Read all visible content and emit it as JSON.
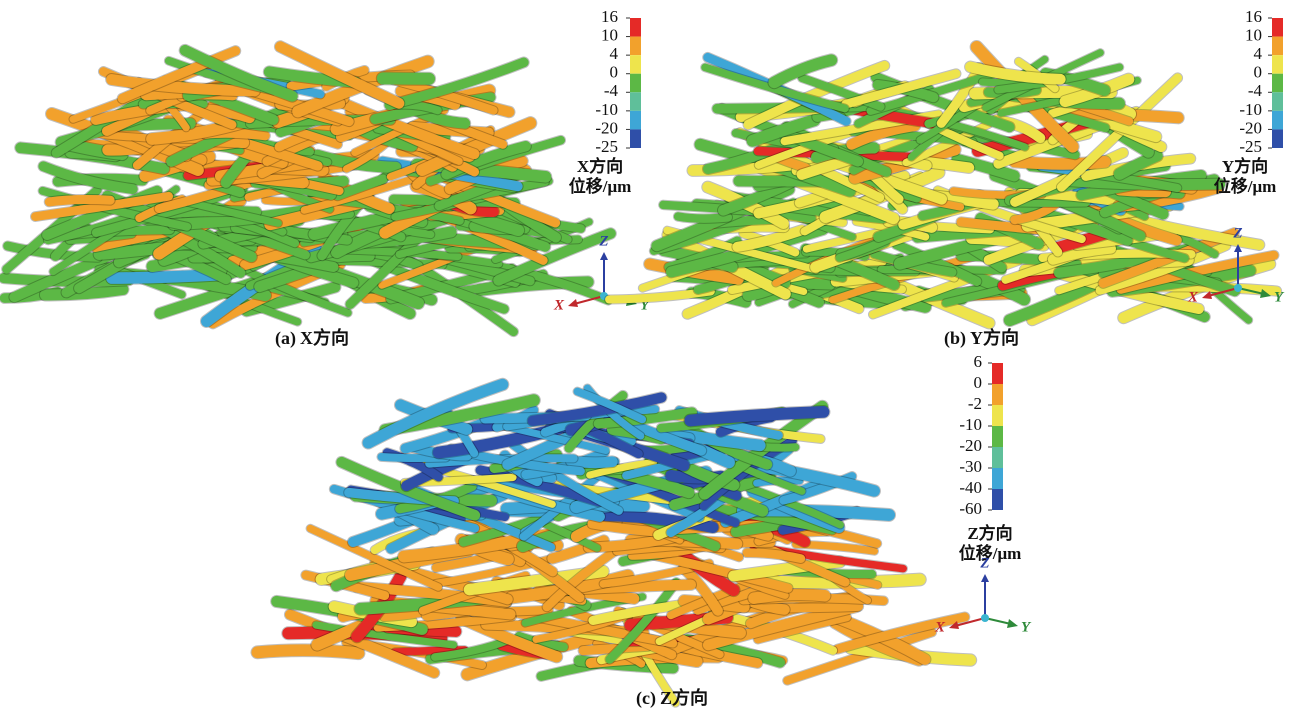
{
  "panels": [
    {
      "caption_label": "(a)",
      "caption_text": "X方向",
      "legend_title": "X方向",
      "legend_unit": "位移/μm",
      "colorbar": {
        "ticks": [
          16,
          10,
          4,
          0,
          -4,
          -10,
          -20,
          -25
        ],
        "colors": [
          "#e52a27",
          "#f2a12c",
          "#eee44c",
          "#5cb845",
          "#5fbf9a",
          "#3ea6d6",
          "#2f4fa8"
        ]
      },
      "axes": {
        "x": "X",
        "y": "Y",
        "z": "Z"
      }
    },
    {
      "caption_label": "(b)",
      "caption_text": "Y方向",
      "legend_title": "Y方向",
      "legend_unit": "位移/μm",
      "colorbar": {
        "ticks": [
          16,
          10,
          4,
          0,
          -4,
          -10,
          -20,
          -25
        ],
        "colors": [
          "#e52a27",
          "#f2a12c",
          "#eee44c",
          "#5cb845",
          "#5fbf9a",
          "#3ea6d6",
          "#2f4fa8"
        ]
      },
      "axes": {
        "x": "X",
        "y": "Y",
        "z": "Z"
      }
    },
    {
      "caption_label": "(c)",
      "caption_text": "Z方向",
      "legend_title": "Z方向",
      "legend_unit": "位移/μm",
      "colorbar": {
        "ticks": [
          6,
          0,
          -2,
          -10,
          -20,
          -30,
          -40,
          -60
        ],
        "colors": [
          "#e52a27",
          "#f2a12c",
          "#eee44c",
          "#5cb845",
          "#5fbf9a",
          "#3ea6d6",
          "#2f4fa8"
        ]
      },
      "axes": {
        "x": "X",
        "y": "Y",
        "z": "Z"
      }
    }
  ]
}
